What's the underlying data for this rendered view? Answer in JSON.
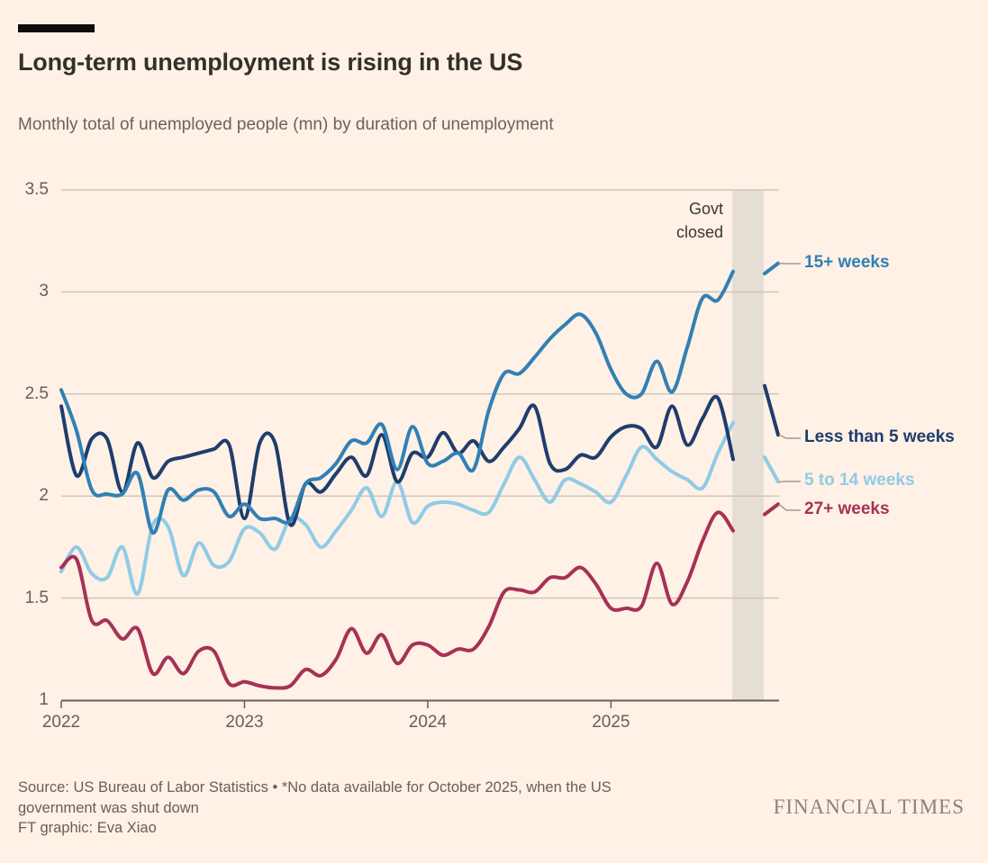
{
  "page": {
    "background": "#FFF1E5"
  },
  "header": {
    "title": "Long-term unemployment is rising in the US",
    "subtitle": "Monthly total of unemployed people (mn) by duration of unemployment",
    "accent_bar_color": "#0d0d0d"
  },
  "chart_data": {
    "type": "line",
    "title": "Long-term unemployment is rising in the US",
    "ylabel": "Unemployed people (mn)",
    "ylim": [
      1,
      3.5
    ],
    "grid": "horizontal only",
    "x_tick_labels": [
      "2022",
      "2023",
      "2024",
      "2025"
    ],
    "y_ticks": [
      3.5,
      3,
      2.5,
      2,
      1.5,
      1
    ],
    "y_tick_labels": [
      "3.5",
      "3",
      "2.5",
      "2",
      "1.5",
      "1"
    ],
    "frequency": "monthly",
    "start_month": "2022-01",
    "end_month": "2025-11",
    "missing_month": "2025-10",
    "shutdown_band": {
      "label_line1": "Govt",
      "label_line2": "closed",
      "covers": "2025-10",
      "color": "#E5DED5"
    },
    "legend_position": "right of plot, line-end labels with connectors",
    "series": [
      {
        "name": "5 to 14 weeks",
        "color": "#90CBE6",
        "values": [
          1.63,
          1.75,
          1.62,
          1.6,
          1.75,
          1.52,
          1.86,
          1.85,
          1.61,
          1.77,
          1.66,
          1.68,
          1.84,
          1.82,
          1.74,
          1.89,
          1.86,
          1.75,
          1.83,
          1.93,
          2.04,
          1.9,
          2.07,
          1.87,
          1.95,
          1.97,
          1.96,
          1.93,
          1.92,
          2.06,
          2.19,
          2.08,
          1.97,
          2.08,
          2.06,
          2.02,
          1.97,
          2.1,
          2.24,
          2.18,
          2.12,
          2.08,
          2.04,
          2.21,
          2.36
        ],
        "nov_2025": 2.07,
        "gap_exit_value": 2.19
      },
      {
        "name": "27+ weeks",
        "color": "#A63157",
        "values": [
          1.65,
          1.69,
          1.39,
          1.39,
          1.3,
          1.35,
          1.13,
          1.21,
          1.13,
          1.24,
          1.24,
          1.08,
          1.09,
          1.07,
          1.06,
          1.07,
          1.15,
          1.12,
          1.2,
          1.35,
          1.23,
          1.32,
          1.18,
          1.27,
          1.27,
          1.22,
          1.25,
          1.25,
          1.36,
          1.53,
          1.54,
          1.53,
          1.6,
          1.6,
          1.65,
          1.57,
          1.45,
          1.45,
          1.46,
          1.67,
          1.47,
          1.58,
          1.78,
          1.92,
          1.83
        ],
        "nov_2025": 1.96,
        "gap_exit_value": 1.91
      },
      {
        "name": "Less than 5 weeks",
        "color": "#1E3D6E",
        "values": [
          2.44,
          2.1,
          2.28,
          2.28,
          2.02,
          2.26,
          2.09,
          2.17,
          2.19,
          2.21,
          2.23,
          2.25,
          1.89,
          2.26,
          2.26,
          1.86,
          2.06,
          2.02,
          2.11,
          2.19,
          2.1,
          2.3,
          2.07,
          2.21,
          2.19,
          2.31,
          2.21,
          2.27,
          2.17,
          2.24,
          2.33,
          2.44,
          2.16,
          2.13,
          2.2,
          2.19,
          2.29,
          2.34,
          2.33,
          2.24,
          2.44,
          2.25,
          2.38,
          2.48,
          2.18
        ],
        "nov_2025": 2.3,
        "gap_exit_value": 2.54
      },
      {
        "name": "15+ weeks",
        "color": "#3080B5",
        "values": [
          2.52,
          2.32,
          2.03,
          2.01,
          2.01,
          2.11,
          1.82,
          2.03,
          1.98,
          2.03,
          2.02,
          1.9,
          1.96,
          1.89,
          1.89,
          1.88,
          2.06,
          2.09,
          2.16,
          2.27,
          2.26,
          2.35,
          2.13,
          2.34,
          2.16,
          2.17,
          2.21,
          2.13,
          2.42,
          2.6,
          2.6,
          2.68,
          2.77,
          2.84,
          2.89,
          2.8,
          2.62,
          2.5,
          2.5,
          2.66,
          2.51,
          2.73,
          2.97,
          2.96,
          3.1
        ],
        "nov_2025": 3.14,
        "gap_exit_value": 3.09
      }
    ],
    "colors": {
      "gridline": "#CFC6BA",
      "axis": "#66605B",
      "connector": "#A39C94"
    }
  },
  "footer": {
    "source": "Source: US Bureau of Labor Statistics • *No data available for October 2025, when the US government was shut down",
    "credit": "FT graphic: Eva Xiao",
    "logo": "FINANCIAL TIMES"
  }
}
